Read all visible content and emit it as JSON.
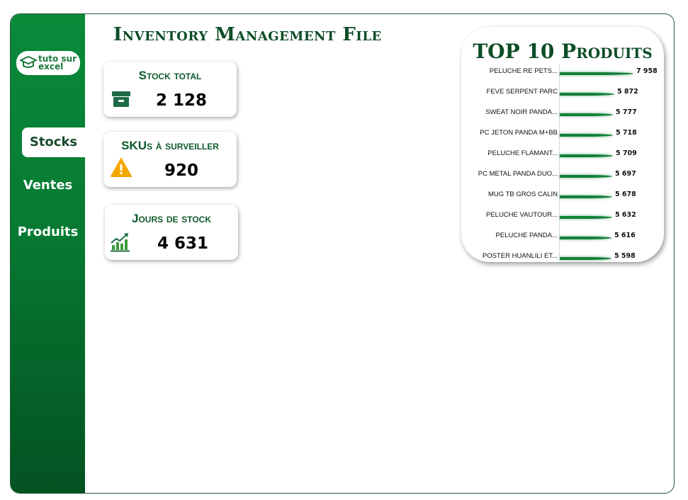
{
  "app": {
    "title": "Inventory Management File",
    "logo_line1": "tuto sur",
    "logo_line2": "excel"
  },
  "sidebar": {
    "items": [
      {
        "label": "Stocks",
        "active": true
      },
      {
        "label": "Ventes",
        "active": false
      },
      {
        "label": "Produits",
        "active": false
      }
    ]
  },
  "kpis": [
    {
      "label": "Stock total",
      "value": "2 128",
      "icon": "archive-box-icon"
    },
    {
      "label": "SKUs à surveiller",
      "value": "920",
      "icon": "warning-icon"
    },
    {
      "label": "Jours de stock",
      "value": "4 631",
      "icon": "growth-chart-icon"
    }
  ],
  "colors": {
    "accent": "#0b8a3a",
    "dark_green": "#0d4d27",
    "warning": "#f5a800"
  },
  "chart_data": {
    "type": "bar",
    "title": "TOP 10 Produits",
    "orientation": "horizontal",
    "categories": [
      "PELUCHE RE PETS...",
      "FEVE SERPENT PARC",
      "SWEAT NOIR PANDA...",
      "PC JETON PANDA M+BB",
      "PELUCHE FLAMANT...",
      "PC METAL PANDA DUO...",
      "MUG TB GROS CALIN",
      "PELUCHE VAUTOUR...",
      "PELUCHE PANDA...",
      "POSTER HUANLILI ET..."
    ],
    "values": [
      7958,
      5872,
      5777,
      5718,
      5709,
      5697,
      5678,
      5632,
      5616,
      5598
    ],
    "value_labels": [
      "7 958",
      "5 872",
      "5 777",
      "5 718",
      "5 709",
      "5 697",
      "5 678",
      "5 632",
      "5 616",
      "5 598"
    ],
    "xlim": [
      0,
      7958
    ],
    "grid": false,
    "legend": "none"
  }
}
